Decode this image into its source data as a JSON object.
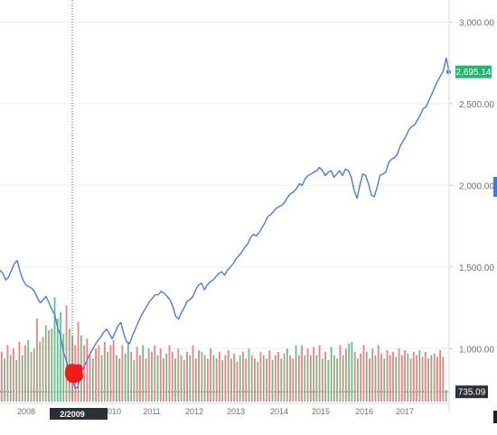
{
  "chart_data": {
    "type": "line",
    "x_labels": [
      "2008",
      "2/2009",
      "2010",
      "2011",
      "2012",
      "2013",
      "2014",
      "2015",
      "2016",
      "2017"
    ],
    "y_ticks": [
      "3,000.00",
      "2,500.00",
      "2,000.00",
      "1,500.00",
      "1,000.00"
    ],
    "ylim": [
      620,
      3080
    ],
    "grid": true,
    "series": [
      {
        "values": [
          1480,
          1460,
          1420,
          1440,
          1480,
          1520,
          1540,
          1470,
          1420,
          1390,
          1380,
          1370,
          1350,
          1310,
          1280,
          1300,
          1320,
          1280,
          1240,
          1210,
          1130,
          1080,
          980,
          930,
          870,
          820,
          760,
          760,
          860,
          880,
          920,
          960,
          990,
          1020,
          1050,
          1070,
          1100,
          1120,
          1090,
          1060,
          1100,
          1140,
          1160,
          1090,
          1040,
          1030,
          1080,
          1120,
          1160,
          1200,
          1230,
          1260,
          1290,
          1310,
          1330,
          1330,
          1350,
          1340,
          1320,
          1300,
          1260,
          1200,
          1180,
          1220,
          1250,
          1290,
          1300,
          1320,
          1360,
          1390,
          1400,
          1360,
          1390,
          1410,
          1420,
          1440,
          1460,
          1470,
          1450,
          1480,
          1500,
          1520,
          1550,
          1570,
          1590,
          1620,
          1640,
          1680,
          1700,
          1690,
          1710,
          1740,
          1770,
          1810,
          1820,
          1840,
          1860,
          1870,
          1880,
          1900,
          1930,
          1950,
          1960,
          1980,
          2010,
          2000,
          2040,
          2060,
          2070,
          2080,
          2090,
          2110,
          2090,
          2060,
          2080,
          2090,
          2050,
          2070,
          2090,
          2060,
          2100,
          2090,
          2050,
          1970,
          1920,
          2000,
          2070,
          2060,
          2010,
          1940,
          1930,
          1990,
          2060,
          2070,
          2080,
          2140,
          2160,
          2170,
          2190,
          2240,
          2270,
          2300,
          2340,
          2360,
          2370,
          2400,
          2430,
          2470,
          2480,
          2520,
          2560,
          2600,
          2640,
          2670,
          2700,
          2780,
          2695
        ],
        "color": "#4c7be0"
      }
    ],
    "volume_bars": [
      [
        920,
        0
      ],
      [
        880,
        1
      ],
      [
        960,
        0
      ],
      [
        900,
        1
      ],
      [
        940,
        0
      ],
      [
        870,
        1
      ],
      [
        980,
        0
      ],
      [
        900,
        1
      ],
      [
        960,
        0
      ],
      [
        990,
        1
      ],
      [
        920,
        0
      ],
      [
        940,
        1
      ],
      [
        1120,
        0
      ],
      [
        980,
        1
      ],
      [
        1010,
        0
      ],
      [
        1080,
        1
      ],
      [
        1050,
        0
      ],
      [
        1060,
        1
      ],
      [
        1250,
        1
      ],
      [
        1120,
        1
      ],
      [
        1160,
        1
      ],
      [
        1030,
        1
      ],
      [
        1200,
        0
      ],
      [
        1060,
        1
      ],
      [
        1020,
        0
      ],
      [
        960,
        0
      ],
      [
        1100,
        0
      ],
      [
        1020,
        1
      ],
      [
        960,
        0
      ],
      [
        1000,
        0
      ],
      [
        900,
        0
      ],
      [
        880,
        1
      ],
      [
        940,
        0
      ],
      [
        960,
        0
      ],
      [
        900,
        1
      ],
      [
        980,
        0
      ],
      [
        920,
        1
      ],
      [
        960,
        0
      ],
      [
        990,
        0
      ],
      [
        900,
        1
      ],
      [
        880,
        0
      ],
      [
        960,
        0
      ],
      [
        910,
        1
      ],
      [
        980,
        1
      ],
      [
        920,
        0
      ],
      [
        870,
        1
      ],
      [
        950,
        0
      ],
      [
        900,
        0
      ],
      [
        960,
        1
      ],
      [
        880,
        0
      ],
      [
        940,
        0
      ],
      [
        920,
        1
      ],
      [
        960,
        0
      ],
      [
        900,
        1
      ],
      [
        940,
        0
      ],
      [
        880,
        0
      ],
      [
        910,
        1
      ],
      [
        960,
        0
      ],
      [
        920,
        0
      ],
      [
        880,
        1
      ],
      [
        940,
        0
      ],
      [
        900,
        1
      ],
      [
        870,
        0
      ],
      [
        920,
        0
      ],
      [
        900,
        1
      ],
      [
        960,
        0
      ],
      [
        880,
        0
      ],
      [
        930,
        1
      ],
      [
        920,
        0
      ],
      [
        900,
        1
      ],
      [
        880,
        0
      ],
      [
        940,
        0
      ],
      [
        900,
        1
      ],
      [
        880,
        0
      ],
      [
        920,
        0
      ],
      [
        870,
        1
      ],
      [
        900,
        0
      ],
      [
        930,
        0
      ],
      [
        880,
        1
      ],
      [
        910,
        0
      ],
      [
        860,
        0
      ],
      [
        900,
        1
      ],
      [
        920,
        0
      ],
      [
        880,
        0
      ],
      [
        940,
        1
      ],
      [
        900,
        0
      ],
      [
        880,
        1
      ],
      [
        860,
        0
      ],
      [
        920,
        0
      ],
      [
        900,
        1
      ],
      [
        880,
        0
      ],
      [
        930,
        0
      ],
      [
        870,
        1
      ],
      [
        900,
        0
      ],
      [
        920,
        0
      ],
      [
        880,
        1
      ],
      [
        910,
        0
      ],
      [
        940,
        1
      ],
      [
        900,
        0
      ],
      [
        880,
        0
      ],
      [
        960,
        1
      ],
      [
        900,
        0
      ],
      [
        960,
        0
      ],
      [
        900,
        1
      ],
      [
        940,
        0
      ],
      [
        900,
        1
      ],
      [
        950,
        0
      ],
      [
        900,
        1
      ],
      [
        960,
        0
      ],
      [
        880,
        1
      ],
      [
        920,
        0
      ],
      [
        870,
        1
      ],
      [
        950,
        1
      ],
      [
        900,
        0
      ],
      [
        880,
        1
      ],
      [
        960,
        0
      ],
      [
        900,
        1
      ],
      [
        940,
        0
      ],
      [
        970,
        1
      ],
      [
        980,
        1
      ],
      [
        920,
        0
      ],
      [
        880,
        1
      ],
      [
        910,
        0
      ],
      [
        960,
        0
      ],
      [
        920,
        1
      ],
      [
        880,
        0
      ],
      [
        940,
        0
      ],
      [
        900,
        1
      ],
      [
        960,
        0
      ],
      [
        910,
        0
      ],
      [
        880,
        1
      ],
      [
        930,
        0
      ],
      [
        900,
        0
      ],
      [
        920,
        0
      ],
      [
        890,
        1
      ],
      [
        940,
        0
      ],
      [
        900,
        0
      ],
      [
        930,
        0
      ],
      [
        910,
        1
      ],
      [
        880,
        0
      ],
      [
        920,
        0
      ],
      [
        900,
        0
      ],
      [
        930,
        1
      ],
      [
        890,
        0
      ],
      [
        920,
        0
      ],
      [
        880,
        0
      ],
      [
        900,
        1
      ],
      [
        910,
        0
      ],
      [
        890,
        0
      ],
      [
        930,
        0
      ],
      [
        890,
        0
      ],
      [
        690,
        1
      ]
    ],
    "current_price_label": "2,695.14",
    "crosshair_price_label": "735.09",
    "crosshair_date_label": "2/2009",
    "colors": {
      "line": "#4c7be0",
      "volume_up": "#5cc48a",
      "volume_down": "#f07f7f",
      "price_tag": "#25b573",
      "crosshair_tag": "#2b2f36",
      "marker": "#ee1c1c"
    }
  }
}
